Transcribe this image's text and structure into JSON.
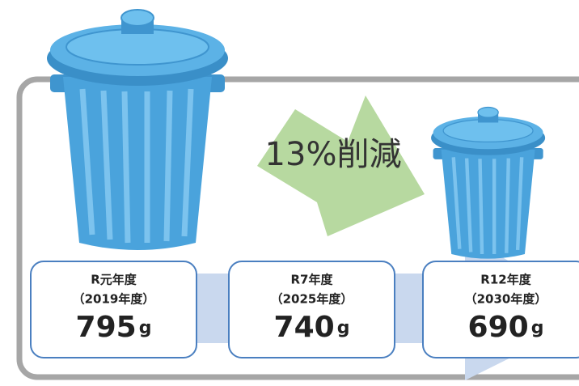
{
  "annotation": "13%削減",
  "items": [
    {
      "label": "R元年度",
      "sublabel": "（2019年度）",
      "value": 795,
      "unit": "g"
    },
    {
      "label": "R7年度",
      "sublabel": "（2025年度）",
      "value": 740,
      "unit": "g"
    },
    {
      "label": "R12年度",
      "sublabel": "（2030年度）",
      "value": 690,
      "unit": "g"
    }
  ]
}
